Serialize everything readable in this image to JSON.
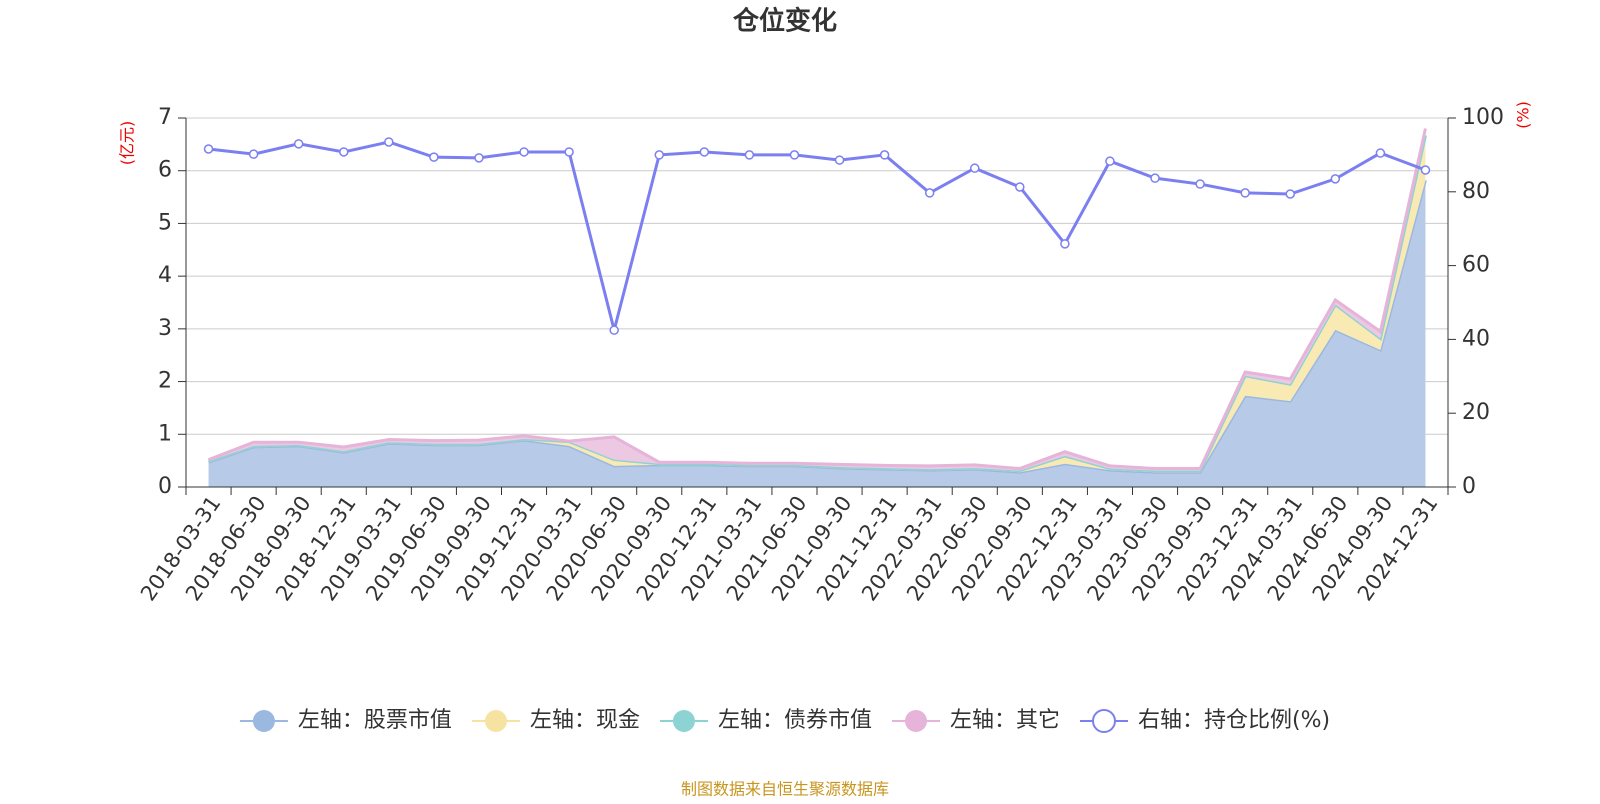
{
  "chart_data": {
    "type": "stacked_area_line",
    "title": "仓位变化",
    "y_label": "(亿元)",
    "y2_label": "(%)",
    "source": "制图数据来自恒生聚源数据库",
    "categories": [
      "2018-03-31",
      "2018-06-30",
      "2018-09-30",
      "2018-12-31",
      "2019-03-31",
      "2019-06-30",
      "2019-09-30",
      "2019-12-31",
      "2020-03-31",
      "2020-06-30",
      "2020-09-30",
      "2020-12-31",
      "2021-03-31",
      "2021-06-30",
      "2021-09-30",
      "2021-12-31",
      "2022-03-31",
      "2022-06-30",
      "2022-09-30",
      "2022-12-31",
      "2023-03-31",
      "2023-06-30",
      "2023-09-30",
      "2023-12-31",
      "2024-03-31",
      "2024-06-30",
      "2024-09-30",
      "2024-12-31"
    ],
    "series": [
      {
        "name": "左轴：股票市值",
        "color": "#9bb8e0",
        "axis": "y",
        "values": [
          0.47,
          0.76,
          0.78,
          0.66,
          0.83,
          0.8,
          0.8,
          0.89,
          0.78,
          0.4,
          0.42,
          0.42,
          0.4,
          0.4,
          0.36,
          0.34,
          0.32,
          0.34,
          0.28,
          0.44,
          0.32,
          0.28,
          0.28,
          1.73,
          1.63,
          2.98,
          2.6,
          5.82
        ]
      },
      {
        "name": "左轴：现金",
        "color": "#f7e3a1",
        "axis": "y",
        "values": [
          0.02,
          0.02,
          0.02,
          0.02,
          0.02,
          0.02,
          0.02,
          0.02,
          0.08,
          0.12,
          0.02,
          0.02,
          0.02,
          0.02,
          0.02,
          0.02,
          0.02,
          0.02,
          0.03,
          0.15,
          0.03,
          0.03,
          0.03,
          0.38,
          0.32,
          0.48,
          0.22,
          0.85
        ]
      },
      {
        "name": "左轴：债券市值",
        "color": "#8ed3d3",
        "axis": "y",
        "values": [
          0,
          0,
          0,
          0,
          0,
          0,
          0,
          0,
          0,
          0,
          0,
          0,
          0,
          0,
          0,
          0,
          0,
          0,
          0,
          0,
          0,
          0,
          0,
          0,
          0,
          0,
          0,
          0
        ]
      },
      {
        "name": "左轴：其它",
        "color": "#e6b3d9",
        "axis": "y",
        "values": [
          0.03,
          0.07,
          0.05,
          0.08,
          0.05,
          0.06,
          0.07,
          0.06,
          0.01,
          0.43,
          0.03,
          0.03,
          0.03,
          0.03,
          0.05,
          0.05,
          0.06,
          0.06,
          0.04,
          0.08,
          0.05,
          0.04,
          0.04,
          0.07,
          0.1,
          0.09,
          0.13,
          0.13
        ]
      },
      {
        "name": "右轴：持仓比例(%)",
        "color": "#7b7ff0",
        "axis": "y2",
        "values": [
          91.6,
          90.2,
          93.0,
          90.8,
          93.5,
          89.4,
          89.2,
          90.8,
          90.8,
          42.5,
          90.0,
          90.8,
          90.0,
          90.0,
          88.6,
          90.0,
          79.7,
          86.4,
          81.3,
          65.9,
          88.3,
          83.7,
          82.1,
          79.7,
          79.4,
          83.5,
          90.5,
          85.9
        ]
      }
    ],
    "ylim": [
      0,
      7
    ],
    "yticks": [
      0,
      1,
      2,
      3,
      4,
      5,
      6,
      7
    ],
    "y2lim": [
      0,
      100
    ],
    "y2ticks": [
      0,
      20,
      40,
      60,
      80,
      100
    ],
    "grid": true
  }
}
